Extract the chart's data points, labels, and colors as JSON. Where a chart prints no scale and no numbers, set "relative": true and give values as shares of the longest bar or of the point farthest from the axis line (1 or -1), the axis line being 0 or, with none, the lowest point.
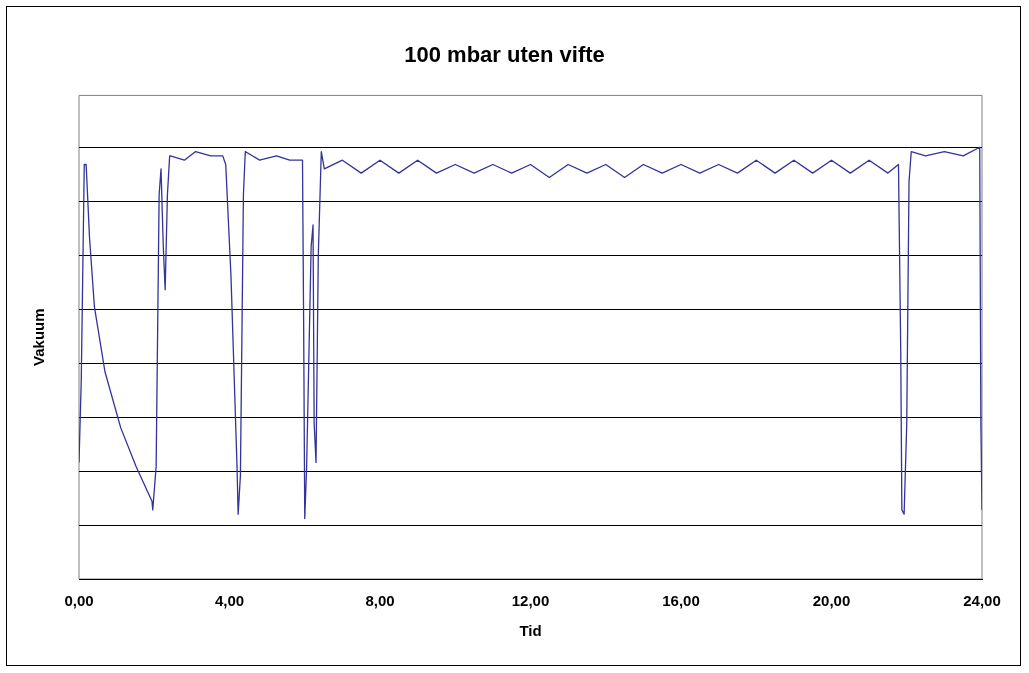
{
  "chart_data": {
    "type": "line",
    "title": "100 mbar uten vifte",
    "xlabel": "Tid",
    "ylabel": "Vakuum",
    "relative": true,
    "xlim": [
      0,
      24
    ],
    "xticks": [
      {
        "value": 0,
        "label": "0,00"
      },
      {
        "value": 4,
        "label": "4,00"
      },
      {
        "value": 8,
        "label": "8,00"
      },
      {
        "value": 12,
        "label": "12,00"
      },
      {
        "value": 16,
        "label": "16,00"
      },
      {
        "value": 20,
        "label": "20,00"
      },
      {
        "value": 24,
        "label": "24,00"
      }
    ],
    "grid": "y",
    "legend": false,
    "marker": "none",
    "line_style": "solid",
    "series": [
      {
        "color": "#333399",
        "x": [
          0,
          0.06,
          0.14,
          0.19,
          0.28,
          0.41,
          0.69,
          1.11,
          1.52,
          1.94,
          1.96,
          2.05,
          2.13,
          2.18,
          2.24,
          2.29,
          2.35,
          2.41,
          2.43,
          2.8,
          3.1,
          3.5,
          3.82,
          3.9,
          4.04,
          4.2,
          4.23,
          4.29,
          4.37,
          4.42,
          4.8,
          5.25,
          5.6,
          5.94,
          5.97,
          6.0,
          6.05,
          6.17,
          6.22,
          6.25,
          6.3,
          6.36,
          6.44,
          6.52,
          7.0,
          7.5,
          8.0,
          8.5,
          9.0,
          9.5,
          10.0,
          10.5,
          11.0,
          11.5,
          12.0,
          12.5,
          13.0,
          13.5,
          14.0,
          14.5,
          15.0,
          15.5,
          16.0,
          16.5,
          17.0,
          17.5,
          18.0,
          18.5,
          19.0,
          19.5,
          20.0,
          20.5,
          21.0,
          21.5,
          21.78,
          21.84,
          21.87,
          21.93,
          22.0,
          22.06,
          22.12,
          22.5,
          23.0,
          23.5,
          23.94,
          23.97,
          24.0
        ],
        "values": [
          0.27,
          0.46,
          0.96,
          0.96,
          0.79,
          0.63,
          0.48,
          0.35,
          0.26,
          0.18,
          0.16,
          0.26,
          0.89,
          0.95,
          0.77,
          0.67,
          0.89,
          0.98,
          0.98,
          0.97,
          0.99,
          0.98,
          0.98,
          0.96,
          0.7,
          0.26,
          0.15,
          0.24,
          0.89,
          0.99,
          0.97,
          0.98,
          0.97,
          0.97,
          0.6,
          0.14,
          0.26,
          0.77,
          0.82,
          0.36,
          0.27,
          0.75,
          0.99,
          0.95,
          0.97,
          0.94,
          0.97,
          0.94,
          0.97,
          0.94,
          0.96,
          0.94,
          0.96,
          0.94,
          0.96,
          0.93,
          0.96,
          0.94,
          0.96,
          0.93,
          0.96,
          0.94,
          0.96,
          0.94,
          0.96,
          0.94,
          0.97,
          0.94,
          0.97,
          0.94,
          0.97,
          0.94,
          0.97,
          0.94,
          0.96,
          0.53,
          0.16,
          0.15,
          0.36,
          0.92,
          0.99,
          0.98,
          0.99,
          0.98,
          1.0,
          0.36,
          0.16
        ]
      }
    ]
  }
}
